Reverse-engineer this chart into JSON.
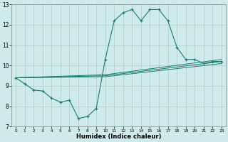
{
  "xlabel": "Humidex (Indice chaleur)",
  "ylabel": "",
  "background_color": "#ceeaea",
  "line_color": "#1a7a6e",
  "grid_color": "#b0c8c8",
  "xlim": [
    -0.5,
    23.5
  ],
  "ylim": [
    7,
    13
  ],
  "yticks": [
    7,
    8,
    9,
    10,
    11,
    12,
    13
  ],
  "xticks": [
    0,
    1,
    2,
    3,
    4,
    5,
    6,
    7,
    8,
    9,
    10,
    11,
    12,
    13,
    14,
    15,
    16,
    17,
    18,
    19,
    20,
    21,
    22,
    23
  ],
  "xtick_labels": [
    "0",
    "1",
    "2",
    "3",
    "4",
    "5",
    "6",
    "7",
    "8",
    "9",
    "10",
    "11",
    "12",
    "13",
    "14",
    "15",
    "16",
    "17",
    "18",
    "19",
    "20",
    "21",
    "22",
    "23"
  ],
  "series_main": {
    "x": [
      0,
      1,
      2,
      3,
      4,
      5,
      6,
      7,
      8,
      9,
      10,
      11,
      12,
      13,
      14,
      15,
      16,
      17,
      18,
      19,
      20,
      21,
      22,
      23
    ],
    "y": [
      9.4,
      9.1,
      8.8,
      8.75,
      8.4,
      8.2,
      8.3,
      7.4,
      7.5,
      7.9,
      10.3,
      12.2,
      12.6,
      12.75,
      12.2,
      12.75,
      12.75,
      12.2,
      10.9,
      10.3,
      10.3,
      10.1,
      10.2,
      10.2
    ]
  },
  "trend_lines": [
    {
      "x": [
        0,
        10,
        23
      ],
      "y": [
        9.4,
        9.55,
        10.3
      ]
    },
    {
      "x": [
        0,
        10,
        23
      ],
      "y": [
        9.4,
        9.5,
        10.2
      ]
    },
    {
      "x": [
        0,
        10,
        23
      ],
      "y": [
        9.4,
        9.45,
        10.1
      ]
    }
  ]
}
